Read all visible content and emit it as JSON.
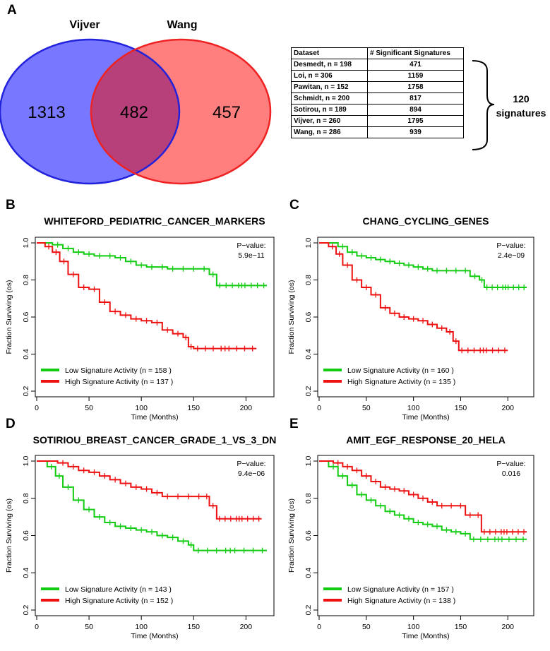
{
  "panel_labels": {
    "a": "A",
    "b": "B",
    "c": "C",
    "d": "D",
    "e": "E"
  },
  "venn": {
    "left_title": "Vijver",
    "right_title": "Wang",
    "left_only": "1313",
    "overlap": "482",
    "right_only": "457",
    "left_color": "#7777ff",
    "left_stroke": "#2222dd",
    "right_color": "#ff7f7f",
    "right_stroke": "#ee2222",
    "overlap_color": "#b8407a"
  },
  "table": {
    "headers": [
      "Dataset",
      "# Significant Signatures"
    ],
    "rows": [
      {
        "dataset": "Desmedt, n = 198",
        "count": "471"
      },
      {
        "dataset": "Loi, n = 306",
        "count": "1159"
      },
      {
        "dataset": "Pawitan, n = 152",
        "count": "1758"
      },
      {
        "dataset": "Schmidt, n = 200",
        "count": "817"
      },
      {
        "dataset": "Sotirou, n = 189",
        "count": "894"
      },
      {
        "dataset": "Vijver, n = 260",
        "count": "1795"
      },
      {
        "dataset": "Wang, n = 286",
        "count": "939"
      }
    ],
    "brace_label_line1": "120",
    "brace_label_line2": "signatures"
  },
  "colors": {
    "low": "#11cc11",
    "high": "#ee1111"
  },
  "chart_data": [
    {
      "type": "line",
      "panel": "B",
      "title": "WHITEFORD_PEDIATRIC_CANCER_MARKERS",
      "xlabel": "Time (Months)",
      "ylabel": "Fraction Surviving (os)",
      "xlim": [
        0,
        220
      ],
      "ylim": [
        0.2,
        1.0
      ],
      "xticks": [
        "0",
        "50",
        "100",
        "150",
        "200"
      ],
      "yticks": [
        "0.2",
        "0.4",
        "0.6",
        "0.8",
        "1.0"
      ],
      "pvalue_label": "P−value:",
      "pvalue": "5.9e−11",
      "series": [
        {
          "name": "Low Signature Activity (n = 158)",
          "legend": "Low Signature Activity (n =  158 )",
          "color": "low",
          "end": 220,
          "x": [
            0,
            15,
            25,
            35,
            45,
            55,
            65,
            75,
            85,
            95,
            105,
            115,
            125,
            135,
            145,
            155,
            165,
            172,
            220
          ],
          "y": [
            1.0,
            0.99,
            0.97,
            0.95,
            0.94,
            0.93,
            0.93,
            0.92,
            0.9,
            0.88,
            0.87,
            0.87,
            0.86,
            0.86,
            0.86,
            0.86,
            0.83,
            0.77,
            0.77
          ]
        },
        {
          "name": "High Signature Activity (n = 137)",
          "legend": "High Signature Activity (n =  137 )",
          "color": "high",
          "end": 210,
          "x": [
            0,
            8,
            15,
            22,
            30,
            40,
            50,
            60,
            70,
            80,
            90,
            100,
            110,
            120,
            130,
            140,
            145,
            150,
            210
          ],
          "y": [
            1.0,
            0.98,
            0.95,
            0.9,
            0.83,
            0.76,
            0.75,
            0.68,
            0.63,
            0.61,
            0.59,
            0.58,
            0.57,
            0.53,
            0.51,
            0.49,
            0.44,
            0.43,
            0.43
          ]
        }
      ]
    },
    {
      "type": "line",
      "panel": "C",
      "title": "CHANG_CYCLING_GENES",
      "xlabel": "Time (Months)",
      "ylabel": "Fraction Surviving (os)",
      "xlim": [
        0,
        220
      ],
      "ylim": [
        0.2,
        1.0
      ],
      "xticks": [
        "0",
        "50",
        "100",
        "150",
        "200"
      ],
      "yticks": [
        "0.2",
        "0.4",
        "0.6",
        "0.8",
        "1.0"
      ],
      "pvalue_label": "P−value:",
      "pvalue": "2.4e−09",
      "series": [
        {
          "name": "Low Signature Activity (n = 160)",
          "legend": "Low Signature Activity (n =  160 )",
          "color": "low",
          "end": 220,
          "x": [
            0,
            20,
            30,
            40,
            50,
            60,
            70,
            80,
            90,
            100,
            110,
            120,
            130,
            140,
            150,
            160,
            170,
            175,
            220
          ],
          "y": [
            1.0,
            0.98,
            0.95,
            0.93,
            0.92,
            0.91,
            0.9,
            0.89,
            0.88,
            0.87,
            0.86,
            0.85,
            0.85,
            0.85,
            0.85,
            0.82,
            0.8,
            0.76,
            0.76
          ]
        },
        {
          "name": "High Signature Activity (n = 135)",
          "legend": "High Signature Activity (n =  135 )",
          "color": "high",
          "end": 200,
          "x": [
            0,
            10,
            18,
            25,
            35,
            45,
            55,
            65,
            75,
            85,
            95,
            105,
            115,
            125,
            135,
            142,
            148,
            200
          ],
          "y": [
            1.0,
            0.98,
            0.94,
            0.88,
            0.8,
            0.76,
            0.72,
            0.65,
            0.62,
            0.6,
            0.59,
            0.58,
            0.56,
            0.54,
            0.52,
            0.47,
            0.42,
            0.42
          ]
        }
      ]
    },
    {
      "type": "line",
      "panel": "D",
      "title": "SOTIRIOU_BREAST_CANCER_GRADE_1_VS_3_DN",
      "xlabel": "Time (Months)",
      "ylabel": "Fraction Surviving (os)",
      "xlim": [
        0,
        220
      ],
      "ylim": [
        0.2,
        1.0
      ],
      "xticks": [
        "0",
        "50",
        "100",
        "150",
        "200"
      ],
      "yticks": [
        "0.2",
        "0.4",
        "0.6",
        "0.8",
        "1.0"
      ],
      "pvalue_label": "P−value:",
      "pvalue": "9.4e−06",
      "series": [
        {
          "name": "Low Signature Activity (n = 143)",
          "legend": "Low Signature Activity (n =  143 )",
          "color": "low",
          "end": 220,
          "x": [
            0,
            10,
            18,
            25,
            35,
            45,
            55,
            65,
            75,
            85,
            95,
            105,
            115,
            125,
            135,
            145,
            150,
            220
          ],
          "y": [
            1.0,
            0.97,
            0.92,
            0.86,
            0.79,
            0.74,
            0.7,
            0.67,
            0.65,
            0.64,
            0.63,
            0.62,
            0.6,
            0.59,
            0.57,
            0.55,
            0.52,
            0.52
          ]
        },
        {
          "name": "High Signature Activity (n = 152)",
          "legend": "High Signature Activity (n =  152 )",
          "color": "high",
          "end": 215,
          "x": [
            0,
            20,
            30,
            40,
            50,
            60,
            70,
            80,
            90,
            100,
            110,
            120,
            130,
            140,
            150,
            160,
            165,
            172,
            215
          ],
          "y": [
            1.0,
            0.99,
            0.97,
            0.95,
            0.94,
            0.92,
            0.9,
            0.88,
            0.86,
            0.85,
            0.83,
            0.81,
            0.81,
            0.81,
            0.81,
            0.81,
            0.76,
            0.69,
            0.69
          ]
        }
      ]
    },
    {
      "type": "line",
      "panel": "E",
      "title": "AMIT_EGF_RESPONSE_20_HELA",
      "xlabel": "Time (Months)",
      "ylabel": "Fraction Surviving (os)",
      "xlim": [
        0,
        220
      ],
      "ylim": [
        0.2,
        1.0
      ],
      "xticks": [
        "0",
        "50",
        "100",
        "150",
        "200"
      ],
      "yticks": [
        "0.2",
        "0.4",
        "0.6",
        "0.8",
        "1.0"
      ],
      "pvalue_label": "P−value:",
      "pvalue": "0.016",
      "series": [
        {
          "name": "Low Signature Activity (n = 157)",
          "legend": "Low Signature Activity (n =  157 )",
          "color": "low",
          "end": 220,
          "x": [
            0,
            10,
            20,
            30,
            40,
            50,
            60,
            70,
            80,
            90,
            100,
            110,
            120,
            130,
            140,
            150,
            160,
            220
          ],
          "y": [
            1.0,
            0.97,
            0.92,
            0.87,
            0.82,
            0.79,
            0.76,
            0.73,
            0.71,
            0.69,
            0.67,
            0.66,
            0.65,
            0.63,
            0.62,
            0.61,
            0.58,
            0.58
          ]
        },
        {
          "name": "High Signature Activity (n = 138)",
          "legend": "High Signature Activity (n =  138 )",
          "color": "high",
          "end": 220,
          "x": [
            0,
            15,
            25,
            35,
            45,
            55,
            65,
            75,
            85,
            95,
            105,
            115,
            125,
            135,
            145,
            155,
            165,
            172,
            220
          ],
          "y": [
            1.0,
            0.99,
            0.97,
            0.95,
            0.92,
            0.89,
            0.86,
            0.85,
            0.84,
            0.82,
            0.8,
            0.78,
            0.76,
            0.76,
            0.76,
            0.71,
            0.71,
            0.62,
            0.62
          ]
        }
      ]
    }
  ]
}
